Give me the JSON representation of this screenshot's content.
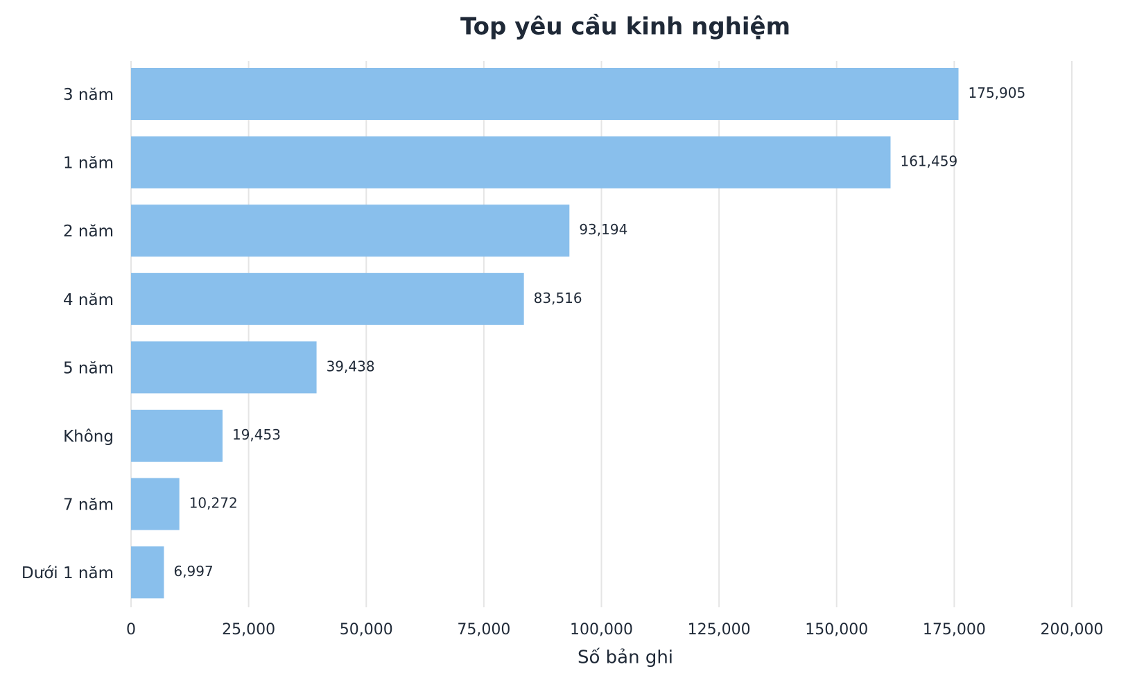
{
  "chart_data": {
    "type": "barh",
    "title": "Top yêu cầu kinh nghiệm",
    "xlabel": "Số bản ghi",
    "categories": [
      "3 năm",
      "1 năm",
      "2 năm",
      "4 năm",
      "5 năm",
      "Không",
      "7 năm",
      "Dưới 1 năm"
    ],
    "values": [
      175905,
      161459,
      93194,
      83516,
      39438,
      19453,
      10272,
      6997
    ],
    "value_labels": [
      "175,905",
      "161,459",
      "93,194",
      "83,516",
      "39,438",
      "19,453",
      "10,272",
      "6,997"
    ],
    "color": "#89bfec",
    "xlim": [
      0,
      200000
    ],
    "xticks": [
      0,
      {
        "value": 25000,
        "label": "25,000"
      },
      {
        "value": 50000,
        "label": "50,000"
      },
      {
        "value": 75000,
        "label": "75,000"
      },
      {
        "value": 100000,
        "label": "100,000"
      },
      {
        "value": 125000,
        "label": "125,000"
      },
      {
        "value": 150000,
        "label": "150,000"
      },
      {
        "value": 175000,
        "label": "175,000"
      },
      {
        "value": 200000,
        "label": "200,000"
      }
    ],
    "grid": true
  }
}
